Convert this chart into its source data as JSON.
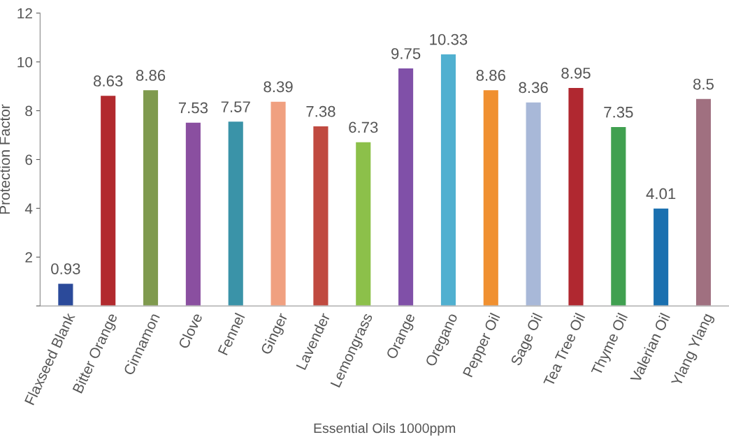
{
  "chart_data": {
    "type": "bar",
    "xlabel": "Essential Oils 1000ppm",
    "ylabel": "Protection Factor",
    "categories": [
      "Flaxseed Blank",
      "Bitter Orange",
      "Cinnamon",
      "Clove",
      "Fennel",
      "Ginger",
      "Lavender",
      "Lemongrass",
      "Orange",
      "Oregano",
      "Pepper Oil",
      "Sage Oil",
      "Tea Tree Oil",
      "Thyme Oil",
      "Valerian Oil",
      "Ylang Ylang"
    ],
    "values": [
      0.93,
      8.63,
      8.86,
      7.53,
      7.57,
      8.39,
      7.38,
      6.73,
      9.75,
      10.33,
      8.86,
      8.36,
      8.95,
      7.35,
      4.01,
      8.5
    ],
    "colors": [
      "#2b4a9a",
      "#b22a2e",
      "#7f9a4e",
      "#8a4fa0",
      "#3a93a8",
      "#f0a080",
      "#c04a40",
      "#8cc04a",
      "#8050a8",
      "#50b0d0",
      "#f09030",
      "#a8b8d8",
      "#b02830",
      "#40a050",
      "#1a70b0",
      "#a07080"
    ],
    "ylim": [
      0,
      12
    ],
    "yticks": [
      {
        "value": 0,
        "label": null
      },
      2,
      4,
      6,
      8,
      10,
      12
    ],
    "data_labels": true,
    "grid": false,
    "legend": false
  }
}
